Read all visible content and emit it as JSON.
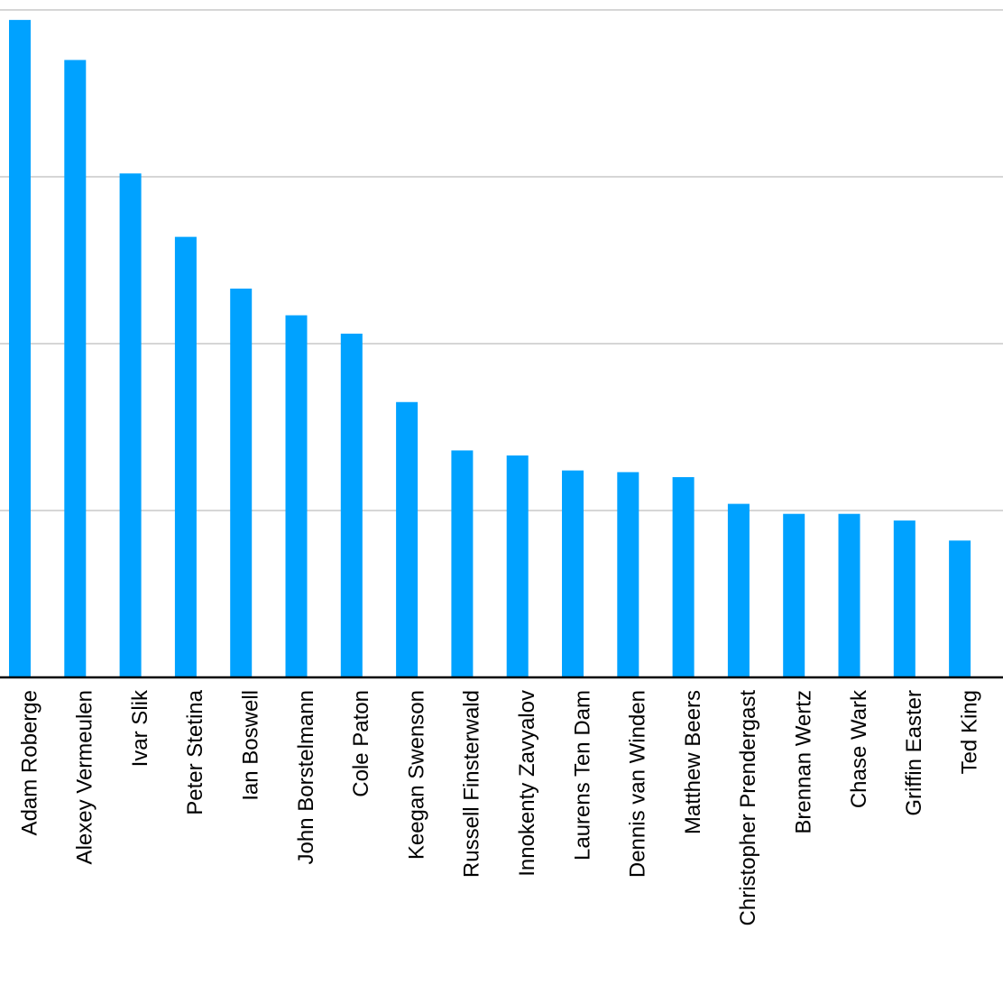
{
  "chart_data": {
    "type": "bar",
    "categories": [
      "Adam Roberge",
      "Alexey Vermeulen",
      "Ivar Slik",
      "Peter Stetina",
      "Ian Boswell",
      "John Borstelmann",
      "Cole Paton",
      "Keegan Swenson",
      "Russell Finsterwald",
      "Innokenty Zavyalov",
      "Laurens Ten Dam",
      "Dennis van Winden",
      "Matthew Beers",
      "Christopher Prendergast",
      "Brennan Wertz",
      "Chase Wark",
      "Griffin Easter",
      "Ted King"
    ],
    "values": [
      3.94,
      3.7,
      3.02,
      2.64,
      2.33,
      2.17,
      2.06,
      1.65,
      1.36,
      1.33,
      1.24,
      1.23,
      1.2,
      1.04,
      0.98,
      0.98,
      0.94,
      0.82
    ],
    "color": "#00a2ff",
    "ylim": [
      0,
      4
    ],
    "yticks": [
      0,
      1,
      2,
      3,
      4
    ],
    "grid": true,
    "tick_labels": false
  }
}
